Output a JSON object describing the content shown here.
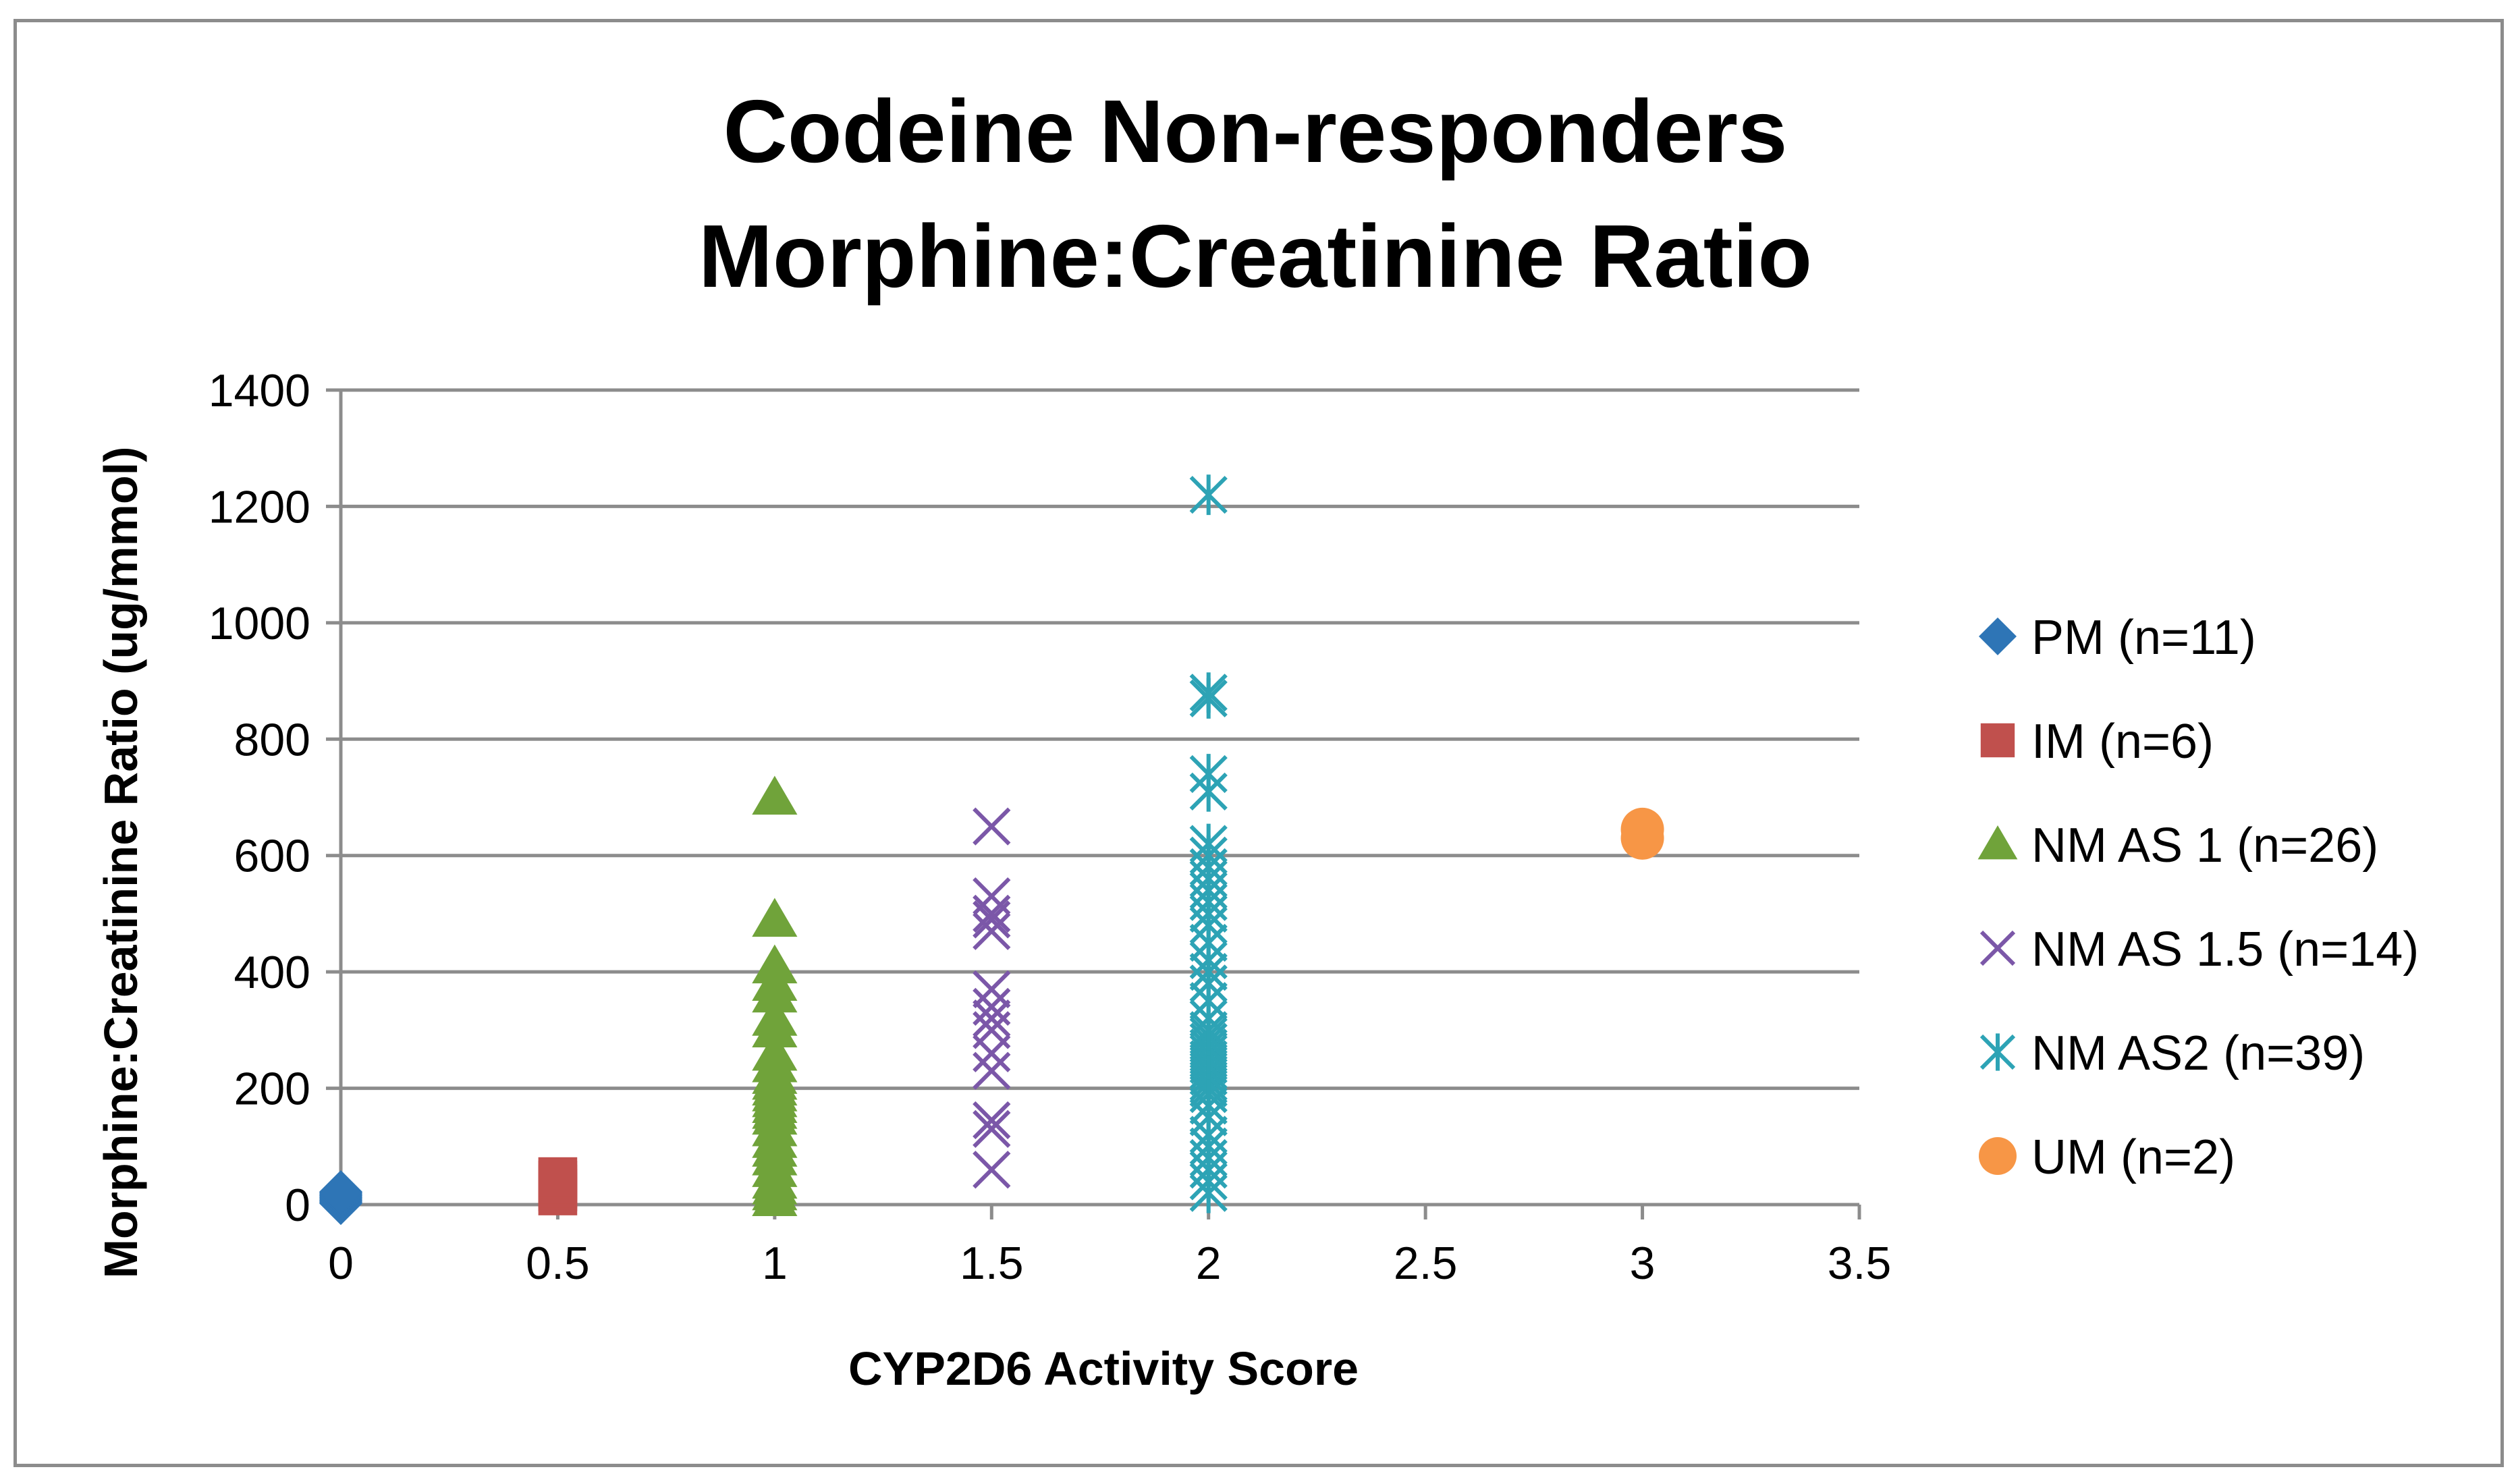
{
  "chart_data": {
    "type": "scatter",
    "title_lines": [
      "Codeine Non-responders",
      "Morphine:Creatinine Ratio"
    ],
    "xlabel": "CYP2D6 Activity Score",
    "ylabel": "Morphine:Creatinine Ratio (ug/mmol)",
    "xlim": [
      0,
      3.5
    ],
    "ylim": [
      0,
      1400
    ],
    "x_ticks": [
      "0",
      "0.5",
      "1",
      "1.5",
      "2",
      "2.5",
      "3",
      "3.5"
    ],
    "y_ticks": [
      "0",
      "200",
      "400",
      "600",
      "800",
      "1000",
      "1200",
      "1400"
    ],
    "grid": "horizontal",
    "legend_position": "right",
    "series": [
      {
        "name": "PM (n=11)",
        "marker": "diamond",
        "color": "#2E75B6",
        "points": [
          [
            0,
            2
          ],
          [
            0,
            4
          ],
          [
            0,
            6
          ],
          [
            0,
            8
          ],
          [
            0,
            10
          ],
          [
            0,
            12
          ],
          [
            0,
            14
          ],
          [
            0,
            16
          ],
          [
            0,
            18
          ],
          [
            0,
            20
          ],
          [
            0,
            22
          ]
        ]
      },
      {
        "name": "IM (n=6)",
        "marker": "square",
        "color": "#C0504D",
        "points": [
          [
            0.5,
            15
          ],
          [
            0.5,
            22
          ],
          [
            0.5,
            28
          ],
          [
            0.5,
            35
          ],
          [
            0.5,
            42
          ],
          [
            0.5,
            48
          ]
        ]
      },
      {
        "name": "NM AS 1 (n=26)",
        "marker": "triangle",
        "color": "#70A33A",
        "points": [
          [
            1,
            10
          ],
          [
            1,
            20
          ],
          [
            1,
            30
          ],
          [
            1,
            40
          ],
          [
            1,
            60
          ],
          [
            1,
            80
          ],
          [
            1,
            95
          ],
          [
            1,
            110
          ],
          [
            1,
            130
          ],
          [
            1,
            150
          ],
          [
            1,
            160
          ],
          [
            1,
            170
          ],
          [
            1,
            180
          ],
          [
            1,
            190
          ],
          [
            1,
            200
          ],
          [
            1,
            210
          ],
          [
            1,
            220
          ],
          [
            1,
            240
          ],
          [
            1,
            260
          ],
          [
            1,
            300
          ],
          [
            1,
            320
          ],
          [
            1,
            360
          ],
          [
            1,
            380
          ],
          [
            1,
            410
          ],
          [
            1,
            490
          ],
          [
            1,
            700
          ]
        ]
      },
      {
        "name": "NM AS 1.5 (n=14)",
        "marker": "x",
        "color": "#7B57A8",
        "points": [
          [
            1.5,
            60
          ],
          [
            1.5,
            130
          ],
          [
            1.5,
            145
          ],
          [
            1.5,
            230
          ],
          [
            1.5,
            260
          ],
          [
            1.5,
            300
          ],
          [
            1.5,
            320
          ],
          [
            1.5,
            340
          ],
          [
            1.5,
            370
          ],
          [
            1.5,
            470
          ],
          [
            1.5,
            490
          ],
          [
            1.5,
            500
          ],
          [
            1.5,
            530
          ],
          [
            1.5,
            650
          ]
        ]
      },
      {
        "name": "NM AS2 (n=39)",
        "marker": "star",
        "color": "#2DA3B5",
        "points": [
          [
            2,
            20
          ],
          [
            2,
            40
          ],
          [
            2,
            60
          ],
          [
            2,
            80
          ],
          [
            2,
            100
          ],
          [
            2,
            120
          ],
          [
            2,
            150
          ],
          [
            2,
            170
          ],
          [
            2,
            190
          ],
          [
            2,
            200
          ],
          [
            2,
            210
          ],
          [
            2,
            220
          ],
          [
            2,
            230
          ],
          [
            2,
            240
          ],
          [
            2,
            250
          ],
          [
            2,
            260
          ],
          [
            2,
            270
          ],
          [
            2,
            280
          ],
          [
            2,
            290
          ],
          [
            2,
            300
          ],
          [
            2,
            320
          ],
          [
            2,
            350
          ],
          [
            2,
            380
          ],
          [
            2,
            400
          ],
          [
            2,
            420
          ],
          [
            2,
            450
          ],
          [
            2,
            480
          ],
          [
            2,
            500
          ],
          [
            2,
            520
          ],
          [
            2,
            540
          ],
          [
            2,
            560
          ],
          [
            2,
            580
          ],
          [
            2,
            600
          ],
          [
            2,
            620
          ],
          [
            2,
            710
          ],
          [
            2,
            740
          ],
          [
            2,
            870
          ],
          [
            2,
            880
          ],
          [
            2,
            1220
          ]
        ]
      },
      {
        "name": "UM (n=2)",
        "marker": "circle",
        "color": "#F79646",
        "points": [
          [
            3,
            630
          ],
          [
            3,
            645
          ]
        ]
      }
    ]
  }
}
